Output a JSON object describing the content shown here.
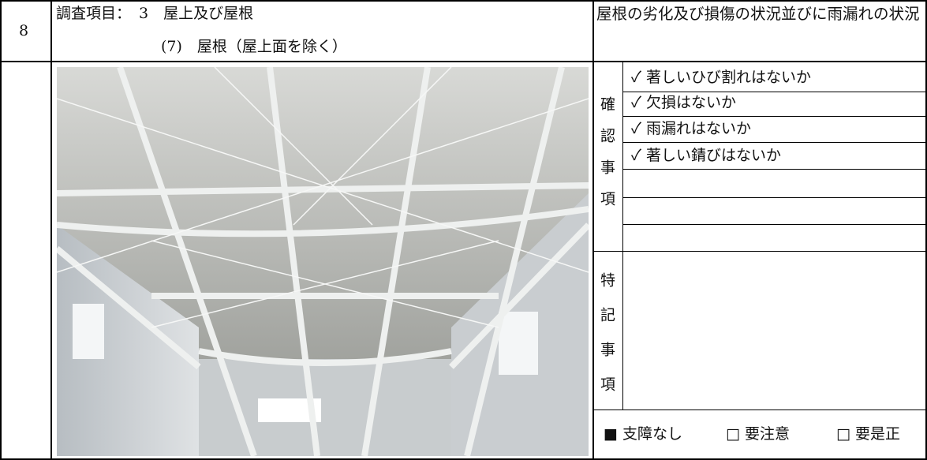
{
  "header": {
    "number": "8",
    "item_label": "調査項目：",
    "item_line1": "3　屋上及び屋根",
    "item_line2": "(7)　屋根（屋上面を除く）",
    "description": "屋根の劣化及び損傷の状況並びに雨漏れの状況"
  },
  "check": {
    "label": "確認事項",
    "items": [
      "✓ 著しいひび割れはないか",
      "✓ 欠損はないか",
      "✓ 雨漏れはないか",
      "✓ 著しい錆びはないか"
    ]
  },
  "notes": {
    "label": "特記事項"
  },
  "status": {
    "options": [
      "■ 支障なし",
      "□ 要注意",
      "□ 要是正"
    ]
  }
}
